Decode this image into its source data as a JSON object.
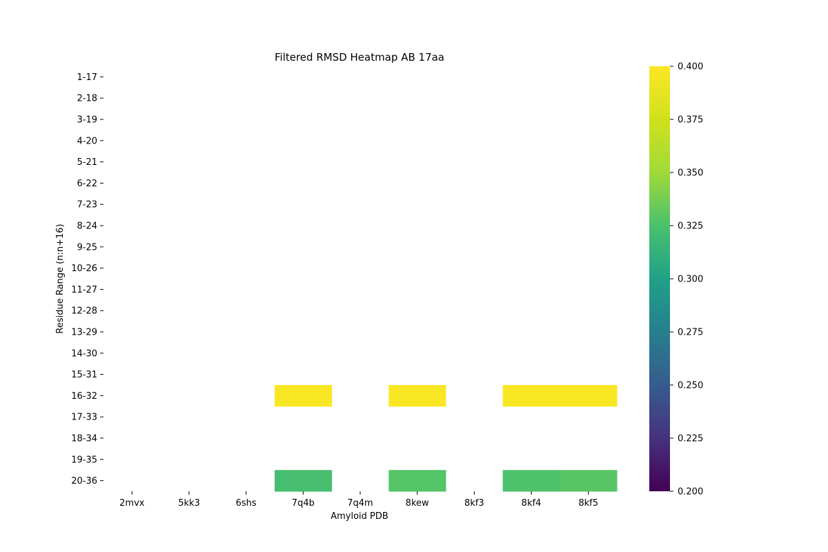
{
  "chart_data": {
    "type": "heatmap",
    "title": "Filtered RMSD Heatmap AB 17aa",
    "xlabel": "Amyloid PDB",
    "ylabel": "Residue Range (n:n+16)",
    "x_categories": [
      "2mvx",
      "5kk3",
      "6shs",
      "7q4b",
      "7q4m",
      "8kew",
      "8kf3",
      "8kf4",
      "8kf5"
    ],
    "y_categories": [
      "1-17",
      "2-18",
      "3-19",
      "4-20",
      "5-21",
      "6-22",
      "7-23",
      "8-24",
      "9-25",
      "10-26",
      "11-27",
      "12-28",
      "13-29",
      "14-30",
      "15-31",
      "16-32",
      "17-33",
      "18-34",
      "19-35",
      "20-36"
    ],
    "cells": [
      {
        "x": "7q4b",
        "y": "16-32",
        "value": 0.398
      },
      {
        "x": "8kew",
        "y": "16-32",
        "value": 0.398
      },
      {
        "x": "8kf4",
        "y": "16-32",
        "value": 0.398
      },
      {
        "x": "8kf5",
        "y": "16-32",
        "value": 0.398
      },
      {
        "x": "7q4b",
        "y": "20-36",
        "value": 0.323
      },
      {
        "x": "8kew",
        "y": "20-36",
        "value": 0.328
      },
      {
        "x": "8kf4",
        "y": "20-36",
        "value": 0.326
      },
      {
        "x": "8kf5",
        "y": "20-36",
        "value": 0.329
      }
    ],
    "colorbar": {
      "colormap": "viridis",
      "range": [
        0.2,
        0.4
      ],
      "ticks": [
        "0.200",
        "0.225",
        "0.250",
        "0.275",
        "0.300",
        "0.325",
        "0.350",
        "0.375",
        "0.400"
      ]
    }
  }
}
